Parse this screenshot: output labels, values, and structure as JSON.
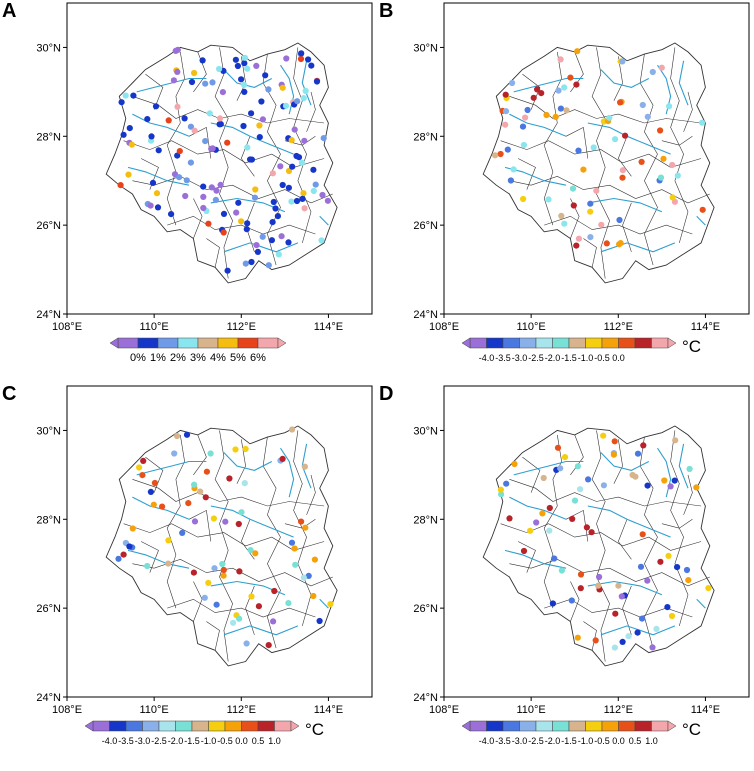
{
  "colors": {
    "frame": "#000000",
    "boundary": "#333333",
    "river": "#2e9fd0"
  },
  "lon_ticks": [
    "108°E",
    "110°E",
    "112°E",
    "114°E"
  ],
  "lat_ticks": [
    "24°N",
    "26°N",
    "28°N",
    "30°N"
  ],
  "panels": [
    {
      "letter": "A",
      "unit": "",
      "legend_colors": [
        "#9a6fd8",
        "#1536c8",
        "#6f9ae8",
        "#8ae6ee",
        "#d7b48c",
        "#f5bd0f",
        "#e8421a",
        "#f4a6ad"
      ],
      "legend_labels": [
        "0%",
        "1%",
        "2%",
        "3%",
        "4%",
        "5%",
        "6%"
      ],
      "station_palette": [
        "#1536c8",
        "#1536c8",
        "#1536c8",
        "#9a6fd8",
        "#1536c8",
        "#9a6fd8",
        "#6f9ae8",
        "#8ae6ee",
        "#1536c8",
        "#f5bd0f",
        "#e8421a",
        "#f4a6ad"
      ],
      "station_count": 150
    },
    {
      "letter": "B",
      "unit": "°C",
      "legend_colors": [
        "#9a6fd8",
        "#1536c8",
        "#4a78e0",
        "#8ab0ea",
        "#a8e4ec",
        "#78e0d4",
        "#d7b48c",
        "#f5cf0f",
        "#f5a20a",
        "#e8501a",
        "#b8232a",
        "#f4a6ad"
      ],
      "legend_labels": [
        "-4.0",
        "-3.5",
        "-3.0",
        "-2.5",
        "-2.0",
        "-1.5",
        "-1.0",
        "-0.5",
        "0.0"
      ],
      "station_palette": [
        "#8ae6ee",
        "#78e0d4",
        "#f5cf0f",
        "#f5a20a",
        "#e8501a",
        "#b8232a",
        "#f4a6ad",
        "#8ab0ea",
        "#4a78e0",
        "#d7b48c"
      ],
      "station_count": 75
    },
    {
      "letter": "C",
      "unit": "°C",
      "legend_colors": [
        "#9a6fd8",
        "#1536c8",
        "#4a78e0",
        "#8ab0ea",
        "#a8e4ec",
        "#78e0d4",
        "#d7b48c",
        "#f5cf0f",
        "#f5a20a",
        "#e8501a",
        "#b8232a",
        "#f4a6ad"
      ],
      "legend_labels": [
        "-4.0",
        "-3.5",
        "-3.0",
        "-2.5",
        "-2.0",
        "-1.5",
        "-1.0",
        "-0.5",
        "0.0",
        "0.5",
        "1.0"
      ],
      "station_palette": [
        "#f5cf0f",
        "#f5cf0f",
        "#a8e4ec",
        "#78e0d4",
        "#d7b48c",
        "#f5a20a",
        "#1536c8",
        "#4a78e0",
        "#8ab0ea",
        "#e8501a",
        "#9a6fd8",
        "#b8232a"
      ],
      "station_count": 72
    },
    {
      "letter": "D",
      "unit": "°C",
      "legend_colors": [
        "#9a6fd8",
        "#1536c8",
        "#4a78e0",
        "#8ab0ea",
        "#a8e4ec",
        "#78e0d4",
        "#d7b48c",
        "#f5cf0f",
        "#f5a20a",
        "#e8501a",
        "#b8232a",
        "#f4a6ad"
      ],
      "legend_labels": [
        "-4.0",
        "-3.5",
        "-3.0",
        "-2.5",
        "-2.0",
        "-1.5",
        "-1.0",
        "-0.5",
        "0.0",
        "0.5",
        "1.0"
      ],
      "station_palette": [
        "#f5cf0f",
        "#f5cf0f",
        "#1536c8",
        "#4a78e0",
        "#9a6fd8",
        "#a8e4ec",
        "#78e0d4",
        "#f5a20a",
        "#e8501a",
        "#b8232a",
        "#8ab0ea",
        "#d7b48c"
      ],
      "station_count": 72
    }
  ]
}
